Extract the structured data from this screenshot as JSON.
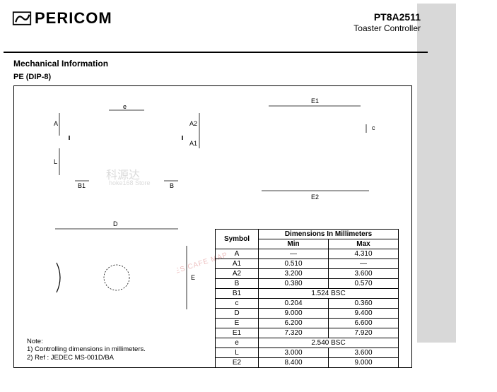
{
  "header": {
    "company": "PERICOM",
    "part_number": "PT8A2511",
    "subtitle": "Toaster Controller"
  },
  "section_title": "Mechanical Information",
  "package_name": "PE (DIP-8)",
  "watermark_cn": "科源达",
  "watermark_sub": "hoke168 Store",
  "watermark_diag": "REAL PHOTOGRAPHS PIRATES CAFE MAP",
  "dim_labels": {
    "A": "A",
    "A2": "A2",
    "A1": "A1",
    "L": "L",
    "B1": "B1",
    "e": "e",
    "B": "B",
    "E1": "E1",
    "E2": "E2",
    "c": "c",
    "D": "D",
    "E": "E"
  },
  "table": {
    "header_span": "Dimensions In Millimeters",
    "symbol_hdr": "Symbol",
    "min_hdr": "Min",
    "max_hdr": "Max",
    "rows": [
      {
        "s": "A",
        "min": "—",
        "max": "4.310"
      },
      {
        "s": "A1",
        "min": "0.510",
        "max": "—"
      },
      {
        "s": "A2",
        "min": "3.200",
        "max": "3.600"
      },
      {
        "s": "B",
        "min": "0.380",
        "max": "0.570"
      },
      {
        "s": "B1",
        "min": "1.524 BSC",
        "max": ""
      },
      {
        "s": "c",
        "min": "0.204",
        "max": "0.360"
      },
      {
        "s": "D",
        "min": "9.000",
        "max": "9.400"
      },
      {
        "s": "E",
        "min": "6.200",
        "max": "6.600"
      },
      {
        "s": "E1",
        "min": "7.320",
        "max": "7.920"
      },
      {
        "s": "e",
        "min": "2.540 BSC",
        "max": ""
      },
      {
        "s": "L",
        "min": "3.000",
        "max": "3.600"
      },
      {
        "s": "E2",
        "min": "8.400",
        "max": "9.000"
      }
    ]
  },
  "notes": {
    "title": "Note:",
    "n1": "1) Controlling dimensions in millimeters.",
    "n2": "2) Ref : JEDEC MS-001D/BA"
  },
  "colors": {
    "shadow": "#d8d8d8",
    "wm_red": "#d88"
  }
}
